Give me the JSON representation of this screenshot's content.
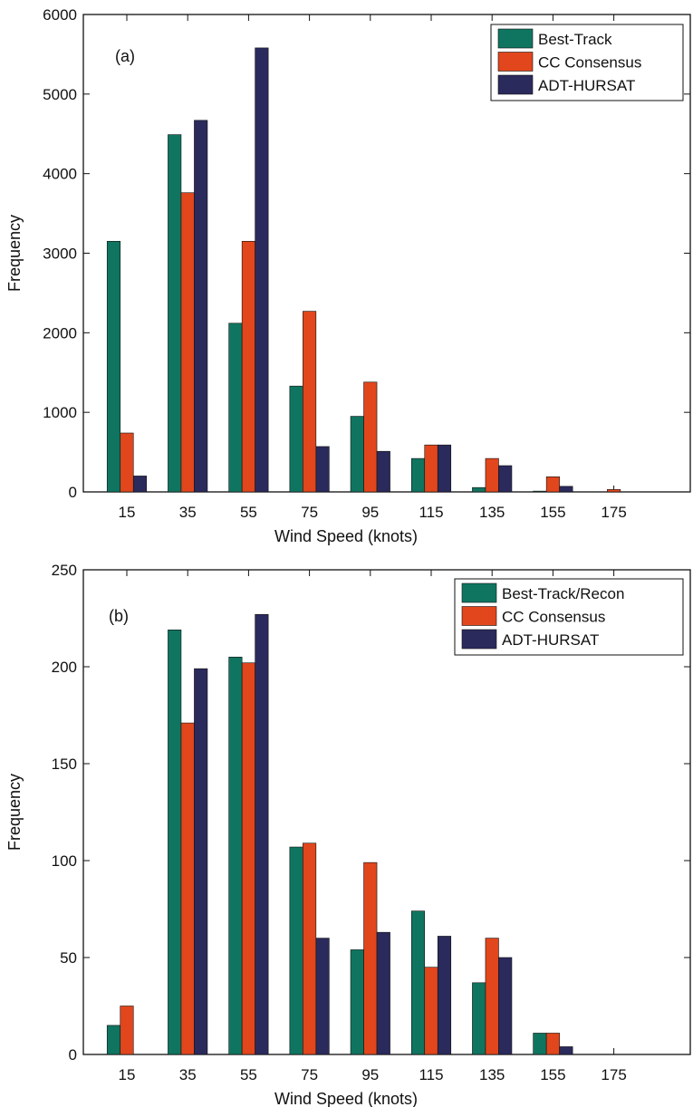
{
  "chart_data": [
    {
      "type": "bar",
      "panel_label": "(a)",
      "categories": [
        "15",
        "35",
        "55",
        "75",
        "95",
        "115",
        "135",
        "155",
        "175"
      ],
      "series": [
        {
          "name": "Best-Track",
          "color": "#0f7560",
          "values": [
            3150,
            4490,
            2120,
            1330,
            950,
            420,
            55,
            10,
            0
          ]
        },
        {
          "name": "CC Consensus",
          "color": "#e1461c",
          "values": [
            740,
            3760,
            3150,
            2270,
            1380,
            590,
            420,
            190,
            30
          ]
        },
        {
          "name": "ADT-HURSAT",
          "color": "#2b2a5c",
          "values": [
            200,
            4670,
            5580,
            570,
            510,
            590,
            330,
            70,
            0
          ]
        }
      ],
      "xlabel": "Wind Speed (knots)",
      "ylabel": "Frequency",
      "ylim": [
        0,
        6000
      ],
      "yticks": [
        "0",
        "1000",
        "2000",
        "3000",
        "4000",
        "5000",
        "6000"
      ],
      "grid": false,
      "legend_position": "top-right"
    },
    {
      "type": "bar",
      "panel_label": "(b)",
      "categories": [
        "15",
        "35",
        "55",
        "75",
        "95",
        "115",
        "135",
        "155",
        "175"
      ],
      "series": [
        {
          "name": "Best-Track/Recon",
          "color": "#0f7560",
          "values": [
            15,
            219,
            205,
            107,
            54,
            74,
            37,
            11,
            0
          ]
        },
        {
          "name": "CC Consensus",
          "color": "#e1461c",
          "values": [
            25,
            171,
            202,
            109,
            99,
            45,
            60,
            11,
            0
          ]
        },
        {
          "name": "ADT-HURSAT",
          "color": "#2b2a5c",
          "values": [
            0,
            199,
            227,
            60,
            63,
            61,
            50,
            4,
            0
          ]
        }
      ],
      "xlabel": "Wind Speed (knots)",
      "ylabel": "Frequency",
      "ylim": [
        0,
        250
      ],
      "yticks": [
        "0",
        "50",
        "100",
        "150",
        "200",
        "250"
      ],
      "grid": false,
      "legend_position": "top-right"
    }
  ]
}
